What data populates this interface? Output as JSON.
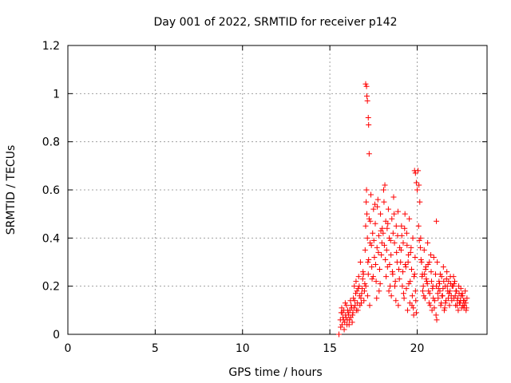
{
  "chart_data": {
    "type": "scatter",
    "title": "Day 001 of 2022, SRMTID for receiver p142",
    "xlabel": "GPS time / hours",
    "ylabel": "SRMTID / TECUs",
    "xlim": [
      0,
      24
    ],
    "ylim": [
      0,
      1.2
    ],
    "x_ticks": [
      0,
      5,
      10,
      15,
      20
    ],
    "y_ticks": [
      0,
      0.2,
      0.4,
      0.6,
      0.8,
      1,
      1.2
    ],
    "grid": true,
    "marker": "plus",
    "colors": {
      "series": "#ff0000",
      "grid": "#a0a0a0",
      "axis": "#000000"
    },
    "series": [
      {
        "x": [
          15.52,
          15.6,
          15.65,
          15.7,
          15.75,
          15.8,
          15.85,
          15.9,
          15.95,
          16.0,
          16.05,
          16.1,
          16.15,
          16.2,
          16.25,
          16.3,
          15.62,
          15.68,
          15.78,
          15.88,
          15.98,
          16.08,
          16.18,
          16.28,
          15.72,
          15.82,
          15.92,
          16.02,
          16.12,
          16.22,
          16.32,
          16.35,
          16.4,
          16.45,
          16.5,
          16.55,
          16.6,
          16.65,
          16.7,
          16.75,
          16.8,
          16.85,
          16.9,
          16.95,
          17.0,
          16.38,
          16.48,
          16.58,
          16.68,
          16.78,
          16.88,
          16.98,
          16.42,
          16.52,
          16.62,
          16.72,
          16.82,
          16.92,
          17.02,
          17.05,
          17.08,
          17.1,
          17.12,
          17.15,
          17.18,
          17.2,
          17.25,
          17.3,
          17.35,
          17.4,
          17.45,
          17.5,
          17.55,
          17.6,
          17.65,
          17.7,
          17.75,
          17.8,
          17.85,
          17.9,
          17.95,
          18.0,
          17.06,
          17.16,
          17.22,
          17.32,
          17.42,
          17.52,
          17.62,
          17.72,
          17.82,
          17.92,
          17.28,
          17.38,
          17.48,
          17.58,
          17.68,
          17.78,
          17.88,
          17.98,
          18.05,
          18.1,
          18.15,
          18.2,
          18.25,
          18.3,
          18.35,
          18.4,
          18.45,
          18.5,
          18.55,
          18.6,
          18.65,
          18.7,
          18.75,
          18.8,
          18.85,
          18.9,
          18.95,
          19.0,
          18.08,
          18.18,
          18.28,
          18.38,
          18.48,
          18.58,
          18.68,
          18.78,
          18.88,
          18.98,
          18.12,
          18.22,
          18.32,
          18.42,
          18.52,
          18.62,
          18.72,
          18.82,
          18.92,
          19.05,
          19.1,
          19.15,
          19.2,
          19.25,
          19.3,
          19.35,
          19.4,
          19.45,
          19.5,
          19.55,
          19.6,
          19.65,
          19.7,
          19.75,
          19.8,
          19.85,
          19.88,
          19.9,
          19.92,
          19.95,
          20.0,
          19.08,
          19.18,
          19.28,
          19.38,
          19.48,
          19.58,
          19.68,
          19.78,
          19.12,
          19.22,
          19.32,
          19.42,
          19.52,
          19.62,
          19.72,
          19.82,
          20.05,
          20.1,
          20.15,
          20.2,
          20.25,
          20.3,
          20.35,
          20.4,
          20.45,
          20.5,
          20.55,
          20.6,
          20.65,
          20.7,
          20.75,
          20.8,
          20.85,
          20.9,
          20.95,
          21.0,
          20.08,
          20.18,
          20.28,
          20.38,
          20.48,
          20.58,
          20.68,
          20.78,
          20.88,
          20.98,
          20.12,
          20.22,
          20.32,
          20.42,
          20.52,
          20.62,
          20.72,
          20.82,
          20.92,
          21.05,
          21.1,
          21.15,
          21.2,
          21.25,
          21.3,
          21.35,
          21.4,
          21.45,
          21.5,
          21.55,
          21.6,
          21.65,
          21.7,
          21.75,
          21.8,
          21.85,
          21.9,
          21.95,
          22.0,
          21.08,
          21.18,
          21.28,
          21.38,
          21.48,
          21.58,
          21.68,
          21.78,
          21.88,
          21.98,
          21.12,
          21.22,
          21.32,
          21.42,
          21.52,
          21.62,
          21.72,
          21.82,
          21.92,
          22.05,
          22.1,
          22.15,
          22.2,
          22.25,
          22.3,
          22.35,
          22.4,
          22.45,
          22.5,
          22.55,
          22.6,
          22.65,
          22.7,
          22.75,
          22.8,
          22.85,
          22.08,
          22.18,
          22.28,
          22.38,
          22.48,
          22.58,
          22.68,
          22.78,
          22.12,
          22.22,
          22.32,
          22.42,
          22.52,
          22.62,
          22.72,
          22.82
        ],
        "y": [
          0.0,
          0.06,
          0.09,
          0.04,
          0.07,
          0.1,
          0.05,
          0.08,
          0.12,
          0.06,
          0.09,
          0.04,
          0.1,
          0.07,
          0.11,
          0.08,
          0.03,
          0.11,
          0.06,
          0.13,
          0.04,
          0.08,
          0.14,
          0.05,
          0.09,
          0.02,
          0.07,
          0.1,
          0.06,
          0.12,
          0.09,
          0.15,
          0.2,
          0.12,
          0.22,
          0.18,
          0.1,
          0.24,
          0.16,
          0.3,
          0.13,
          0.19,
          0.26,
          0.14,
          0.21,
          0.11,
          0.17,
          0.13,
          0.2,
          0.15,
          0.23,
          0.18,
          0.14,
          0.1,
          0.19,
          0.12,
          0.17,
          0.25,
          0.35,
          0.45,
          0.55,
          0.6,
          0.5,
          0.4,
          0.3,
          0.25,
          0.48,
          0.38,
          0.58,
          0.28,
          0.42,
          0.52,
          0.32,
          0.46,
          0.22,
          0.36,
          0.56,
          0.41,
          0.27,
          0.5,
          0.33,
          0.44,
          0.2,
          0.16,
          0.31,
          0.47,
          0.23,
          0.39,
          0.29,
          0.53,
          0.18,
          0.43,
          0.12,
          0.37,
          0.24,
          0.54,
          0.15,
          0.34,
          0.21,
          0.38,
          0.42,
          0.55,
          0.62,
          0.47,
          0.35,
          0.28,
          0.52,
          0.4,
          0.2,
          0.33,
          0.48,
          0.25,
          0.57,
          0.38,
          0.22,
          0.45,
          0.3,
          0.51,
          0.27,
          0.36,
          0.6,
          0.31,
          0.44,
          0.18,
          0.39,
          0.26,
          0.5,
          0.14,
          0.41,
          0.23,
          0.37,
          0.24,
          0.46,
          0.29,
          0.16,
          0.42,
          0.2,
          0.34,
          0.12,
          0.3,
          0.45,
          0.2,
          0.38,
          0.15,
          0.5,
          0.28,
          0.42,
          0.1,
          0.33,
          0.48,
          0.22,
          0.36,
          0.12,
          0.4,
          0.08,
          0.25,
          0.32,
          0.18,
          0.14,
          0.09,
          0.6,
          0.35,
          0.26,
          0.44,
          0.19,
          0.3,
          0.13,
          0.27,
          0.11,
          0.41,
          0.17,
          0.29,
          0.37,
          0.21,
          0.34,
          0.16,
          0.24,
          0.68,
          0.62,
          0.55,
          0.4,
          0.3,
          0.25,
          0.2,
          0.35,
          0.15,
          0.28,
          0.22,
          0.38,
          0.18,
          0.3,
          0.12,
          0.26,
          0.1,
          0.2,
          0.32,
          0.14,
          0.45,
          0.36,
          0.24,
          0.16,
          0.27,
          0.21,
          0.13,
          0.33,
          0.19,
          0.11,
          0.39,
          0.31,
          0.18,
          0.25,
          0.23,
          0.29,
          0.17,
          0.22,
          0.15,
          0.25,
          0.2,
          0.3,
          0.15,
          0.22,
          0.18,
          0.12,
          0.24,
          0.16,
          0.28,
          0.1,
          0.2,
          0.14,
          0.26,
          0.18,
          0.22,
          0.12,
          0.24,
          0.16,
          0.2,
          0.08,
          0.17,
          0.21,
          0.13,
          0.19,
          0.11,
          0.23,
          0.15,
          0.18,
          0.14,
          0.06,
          0.19,
          0.25,
          0.16,
          0.22,
          0.13,
          0.2,
          0.17,
          0.21,
          0.2,
          0.15,
          0.22,
          0.12,
          0.18,
          0.14,
          0.1,
          0.17,
          0.13,
          0.19,
          0.11,
          0.16,
          0.14,
          0.12,
          0.18,
          0.1,
          0.15,
          0.24,
          0.16,
          0.12,
          0.2,
          0.14,
          0.17,
          0.11,
          0.13,
          0.21,
          0.18,
          0.15,
          0.13,
          0.16,
          0.12,
          0.14,
          0.11
        ]
      },
      {
        "x": [
          17.05,
          17.1,
          17.12,
          17.15,
          17.2,
          17.22,
          17.25,
          19.85,
          19.9,
          19.95,
          21.1
        ],
        "y": [
          1.04,
          1.03,
          0.99,
          0.97,
          0.9,
          0.87,
          0.75,
          0.68,
          0.67,
          0.63,
          0.47
        ]
      }
    ]
  }
}
